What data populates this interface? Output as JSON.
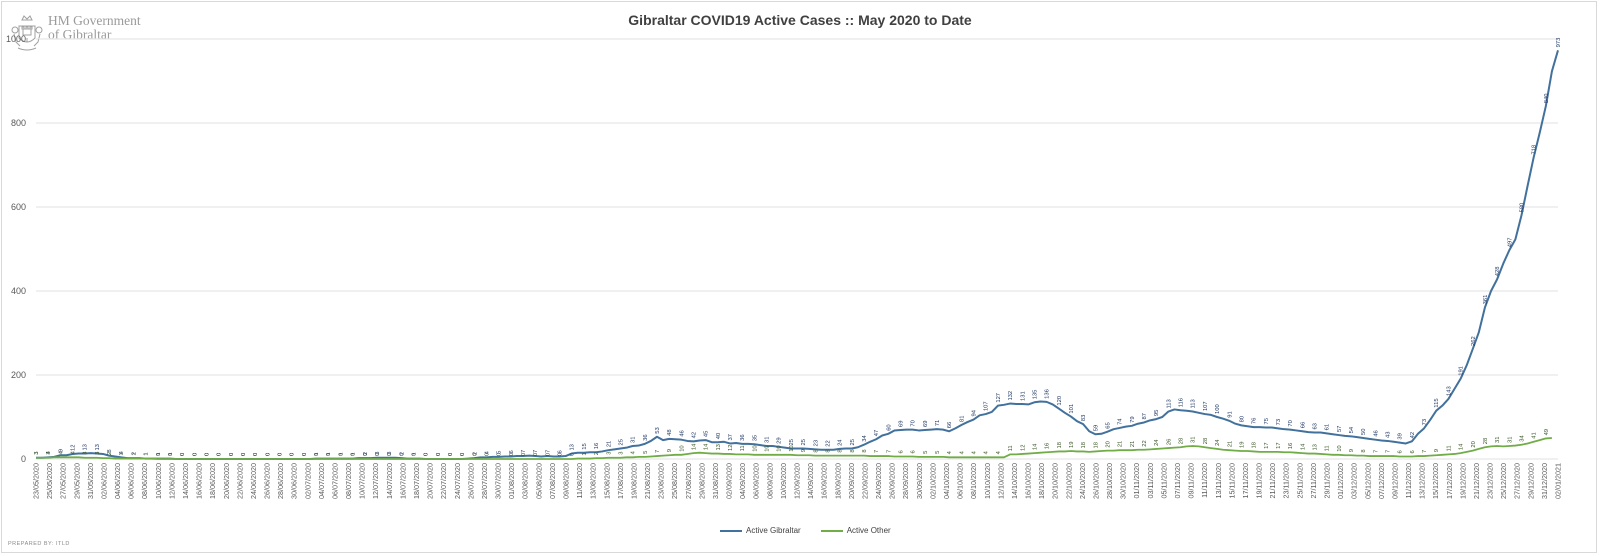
{
  "header": {
    "logo_line1": "HM Government",
    "logo_line2": "of Gibraltar"
  },
  "footer": {
    "prepared_by": "PREPARED BY: ITLD"
  },
  "colors": {
    "gibraltar": "#41719c",
    "other": "#70ad47",
    "grid": "#d9d9d9",
    "text": "#595959"
  },
  "chart_data": {
    "type": "line",
    "title": "Gibraltar COVID19  Active Cases :: May 2020 to Date",
    "xlabel": "",
    "ylabel": "",
    "ylim": [
      0,
      1000
    ],
    "yticks": [
      0,
      200,
      400,
      600,
      800,
      1000
    ],
    "grid": true,
    "legend_position": "bottom",
    "x_tick_labels": [
      "23/05/2020",
      "25/05/2020",
      "27/05/2020",
      "29/05/2020",
      "31/05/2020",
      "02/06/2020",
      "04/06/2020",
      "06/06/2020",
      "08/06/2020",
      "10/06/2020",
      "12/06/2020",
      "14/06/2020",
      "16/06/2020",
      "18/06/2020",
      "20/06/2020",
      "22/06/2020",
      "24/06/2020",
      "26/06/2020",
      "28/06/2020",
      "30/06/2020",
      "02/07/2020",
      "04/07/2020",
      "06/07/2020",
      "08/07/2020",
      "10/07/2020",
      "12/07/2020",
      "14/07/2020",
      "16/07/2020",
      "18/07/2020",
      "20/07/2020",
      "22/07/2020",
      "24/07/2020",
      "26/07/2020",
      "28/07/2020",
      "30/07/2020",
      "01/08/2020",
      "03/08/2020",
      "05/08/2020",
      "07/08/2020",
      "09/08/2020",
      "11/08/2020",
      "13/08/2020",
      "15/08/2020",
      "17/08/2020",
      "19/08/2020",
      "21/08/2020",
      "23/08/2020",
      "25/08/2020",
      "27/08/2020",
      "29/08/2020",
      "31/08/2020",
      "02/09/2020",
      "04/09/2020",
      "06/09/2020",
      "08/09/2020",
      "10/09/2020",
      "12/09/2020",
      "14/09/2020",
      "16/09/2020",
      "18/09/2020",
      "20/09/2020",
      "22/09/2020",
      "24/09/2020",
      "26/09/2020",
      "28/09/2020",
      "30/09/2020",
      "02/10/2020",
      "04/10/2020",
      "06/10/2020",
      "08/10/2020",
      "10/10/2020",
      "12/10/2020",
      "14/10/2020",
      "16/10/2020",
      "18/10/2020",
      "20/10/2020",
      "22/10/2020",
      "24/10/2020",
      "26/10/2020",
      "28/10/2020",
      "30/10/2020",
      "01/11/2020",
      "03/11/2020",
      "05/11/2020",
      "07/11/2020",
      "09/11/2020",
      "11/11/2020",
      "13/11/2020",
      "15/11/2020",
      "17/11/2020",
      "19/11/2020",
      "21/11/2020",
      "23/11/2020",
      "25/11/2020",
      "27/11/2020",
      "29/11/2020",
      "01/12/2020",
      "03/12/2020",
      "05/12/2020",
      "07/12/2020",
      "09/12/2020",
      "11/12/2020",
      "13/12/2020",
      "15/12/2020",
      "17/12/2020",
      "19/12/2020",
      "21/12/2020",
      "23/12/2020",
      "25/12/2020",
      "27/12/2020",
      "29/12/2020",
      "31/12/2020",
      "02/01/2021"
    ],
    "series": [
      {
        "name": "Active Gibraltar",
        "color": "#41719c",
        "values": [
          3,
          3,
          4,
          5,
          9,
          9,
          12,
          13,
          13,
          14,
          13,
          12,
          8,
          6,
          4,
          2,
          2,
          2,
          1,
          1,
          1,
          1,
          1,
          0,
          0,
          0,
          0,
          0,
          0,
          0,
          0,
          0,
          0,
          0,
          0,
          0,
          0,
          0,
          0,
          0,
          0,
          0,
          0,
          0,
          0,
          0,
          1,
          1,
          1,
          1,
          1,
          1,
          1,
          2,
          2,
          2,
          3,
          3,
          3,
          3,
          2,
          1,
          1,
          1,
          0,
          0,
          0,
          0,
          0,
          0,
          0,
          1,
          2,
          4,
          4,
          5,
          5,
          6,
          6,
          7,
          7,
          8,
          7,
          6,
          7,
          6,
          6,
          7,
          13,
          15,
          15,
          16,
          16,
          18,
          21,
          23,
          25,
          27,
          31,
          32,
          36,
          43,
          53,
          45,
          48,
          47,
          46,
          43,
          42,
          44,
          45,
          40,
          40,
          41,
          37,
          38,
          36,
          36,
          35,
          33,
          31,
          31,
          29,
          27,
          25,
          25,
          25,
          24,
          23,
          22,
          22,
          22,
          24,
          25,
          25,
          28,
          34,
          41,
          47,
          56,
          60,
          68,
          69,
          70,
          70,
          68,
          69,
          70,
          71,
          70,
          66,
          73,
          81,
          88,
          94,
          104,
          107,
          112,
          127,
          129,
          132,
          131,
          131,
          130,
          135,
          137,
          136,
          130,
          120,
          110,
          101,
          90,
          83,
          66,
          59,
          60,
          65,
          71,
          74,
          77,
          79,
          84,
          87,
          92,
          95,
          100,
          113,
          118,
          116,
          115,
          113,
          110,
          107,
          105,
          100,
          96,
          91,
          84,
          80,
          78,
          76,
          76,
          75,
          75,
          73,
          71,
          70,
          68,
          66,
          64,
          63,
          63,
          61,
          59,
          57,
          55,
          54,
          52,
          50,
          48,
          46,
          44,
          43,
          41,
          39,
          37,
          42,
          60,
          73,
          93,
          115,
          127,
          143,
          167,
          191,
          223,
          262,
          302,
          361,
          400,
          428,
          465,
          497,
          523,
          580,
          650,
          718,
          777,
          840,
          923,
          973
        ],
        "point_labels": [
          3,
          3,
          4,
          5,
          9,
          9,
          12,
          13,
          13,
          14,
          13,
          12,
          8,
          6,
          4,
          2,
          2,
          2,
          1,
          1,
          1,
          1,
          1,
          0,
          0,
          0,
          0,
          0,
          0,
          0,
          0,
          0,
          0,
          0,
          0,
          0,
          0,
          0,
          0,
          0,
          0,
          0,
          0,
          0,
          0,
          0,
          1,
          1,
          1,
          1,
          1,
          1,
          1,
          2,
          2,
          2,
          3,
          3,
          3,
          3,
          2,
          1,
          1,
          1,
          0,
          0,
          0,
          0,
          0,
          0,
          0,
          1,
          2,
          4,
          4,
          5,
          5,
          6,
          6,
          7,
          7,
          8,
          7,
          6,
          7,
          6,
          6,
          7,
          13,
          15,
          15,
          16,
          16,
          18,
          21,
          23,
          25,
          27,
          31,
          32,
          36,
          43,
          53,
          45,
          48,
          47,
          46,
          43,
          42,
          44,
          45,
          40,
          40,
          41,
          37,
          38,
          36,
          36,
          35,
          33,
          31,
          31,
          29,
          27,
          25,
          25,
          25,
          24,
          23,
          22,
          22,
          22,
          24,
          25,
          25,
          28,
          34,
          41,
          47,
          56,
          60,
          68,
          69,
          70,
          70,
          68,
          69,
          70,
          71,
          70,
          66,
          73,
          81,
          88,
          94,
          104,
          107,
          112,
          127,
          129,
          132,
          131,
          131,
          130,
          135,
          137,
          136,
          130,
          120,
          110,
          101,
          90,
          83,
          66,
          59,
          60,
          65,
          71,
          74,
          77,
          79,
          84,
          87,
          92,
          95,
          100,
          113,
          118,
          116,
          115,
          113,
          110,
          107,
          105,
          100,
          96,
          91,
          84,
          80,
          78,
          76,
          76,
          75,
          75,
          73,
          71,
          70,
          68,
          66,
          64,
          63,
          63,
          61,
          59,
          57,
          55,
          54,
          52,
          50,
          48,
          46,
          44,
          43,
          41,
          39,
          37,
          42,
          60,
          73,
          93,
          115,
          127,
          143,
          167,
          191,
          223,
          262,
          302,
          361,
          400,
          428,
          465,
          497,
          523,
          580,
          650,
          718,
          777,
          840,
          923,
          973
        ]
      },
      {
        "name": "Active Other",
        "color": "#70ad47",
        "values": [
          3,
          3,
          3,
          4,
          4,
          4,
          4,
          4,
          3,
          3,
          3,
          2,
          2,
          1,
          1,
          1,
          1,
          1,
          1,
          1,
          0,
          0,
          0,
          0,
          0,
          0,
          0,
          0,
          0,
          0,
          0,
          0,
          0,
          0,
          0,
          0,
          0,
          0,
          0,
          0,
          0,
          0,
          0,
          0,
          0,
          0,
          0,
          0,
          0,
          0,
          0,
          0,
          0,
          0,
          0,
          0,
          0,
          0,
          0,
          0,
          0,
          0,
          0,
          0,
          0,
          0,
          0,
          0,
          0,
          0,
          0,
          0,
          0,
          0,
          0,
          0,
          0,
          0,
          0,
          0,
          0,
          0,
          0,
          0,
          0,
          0,
          0,
          0,
          0,
          1,
          1,
          1,
          2,
          2,
          3,
          3,
          3,
          4,
          4,
          5,
          5,
          6,
          7,
          8,
          9,
          10,
          10,
          12,
          14,
          15,
          14,
          13,
          13,
          12,
          12,
          11,
          11,
          11,
          10,
          10,
          10,
          10,
          10,
          10,
          10,
          9,
          9,
          9,
          8,
          8,
          8,
          8,
          8,
          8,
          8,
          8,
          8,
          7,
          7,
          7,
          7,
          6,
          6,
          6,
          6,
          5,
          5,
          5,
          5,
          5,
          4,
          4,
          4,
          4,
          4,
          4,
          4,
          4,
          4,
          4,
          11,
          11,
          12,
          13,
          14,
          15,
          16,
          17,
          18,
          18,
          19,
          18,
          18,
          17,
          18,
          19,
          20,
          20,
          21,
          21,
          21,
          22,
          22,
          23,
          24,
          25,
          26,
          27,
          28,
          30,
          31,
          30,
          28,
          26,
          24,
          22,
          21,
          20,
          19,
          19,
          18,
          17,
          17,
          17,
          17,
          16,
          16,
          15,
          14,
          13,
          13,
          12,
          11,
          10,
          10,
          9,
          9,
          8,
          8,
          7,
          7,
          7,
          7,
          7,
          6,
          6,
          6,
          7,
          7,
          8,
          9,
          10,
          11,
          12,
          14,
          17,
          20,
          24,
          28,
          30,
          31,
          30,
          31,
          32,
          34,
          37,
          41,
          45,
          49,
          50
        ],
        "point_labels": [
          3,
          3,
          3,
          4,
          4,
          4,
          4,
          4,
          3,
          3,
          3,
          2,
          2,
          1,
          1,
          1,
          1,
          1,
          1,
          1,
          0,
          0,
          0,
          0,
          0,
          0,
          0,
          0,
          0,
          0,
          0,
          0,
          0,
          0,
          0,
          0,
          0,
          0,
          0,
          0,
          0,
          0,
          0,
          0,
          0,
          0,
          0,
          0,
          0,
          0,
          0,
          0,
          0,
          0,
          0,
          0,
          0,
          0,
          0,
          0,
          0,
          0,
          0,
          0,
          0,
          0,
          0,
          0,
          0,
          0,
          0,
          0,
          0,
          0,
          0,
          0,
          0,
          0,
          0,
          0,
          0,
          0,
          0,
          0,
          0,
          0,
          0,
          0,
          0,
          1,
          1,
          1,
          2,
          2,
          3,
          3,
          3,
          4,
          4,
          5,
          5,
          6,
          7,
          8,
          9,
          10,
          10,
          12,
          14,
          15,
          14,
          13,
          13,
          12,
          12,
          11,
          11,
          11,
          10,
          10,
          10,
          10,
          10,
          10,
          10,
          9,
          9,
          9,
          8,
          8,
          8,
          8,
          8,
          8,
          8,
          8,
          8,
          7,
          7,
          7,
          7,
          6,
          6,
          6,
          6,
          5,
          5,
          5,
          5,
          5,
          4,
          4,
          4,
          4,
          4,
          4,
          4,
          4,
          4,
          4,
          11,
          11,
          12,
          13,
          14,
          15,
          16,
          17,
          18,
          18,
          19,
          18,
          18,
          17,
          18,
          19,
          20,
          20,
          21,
          21,
          21,
          22,
          22,
          23,
          24,
          25,
          26,
          27,
          28,
          30,
          31,
          30,
          28,
          26,
          24,
          22,
          21,
          20,
          19,
          19,
          18,
          17,
          17,
          17,
          17,
          16,
          16,
          15,
          14,
          13,
          13,
          12,
          11,
          10,
          10,
          9,
          9,
          8,
          8,
          7,
          7,
          7,
          7,
          7,
          6,
          6,
          6,
          7,
          7,
          8,
          9,
          10,
          11,
          12,
          14,
          17,
          20,
          24,
          28,
          30,
          31,
          30,
          31,
          32,
          34,
          37,
          41,
          45,
          49,
          50
        ]
      }
    ]
  }
}
